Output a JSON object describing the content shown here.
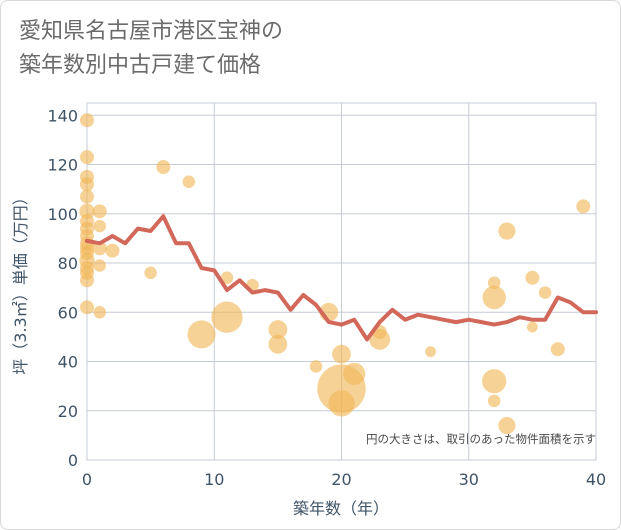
{
  "title_lines": [
    "愛知県名古屋市港区宝神の",
    "築年数別中古戸建て価格"
  ],
  "chart_data": {
    "type": "scatter",
    "title": "愛知県名古屋市港区宝神の築年数別中古戸建て価格",
    "xlabel": "築年数（年）",
    "ylabel": "坪（3.3㎡）単価（万円）",
    "xlim": [
      0,
      40
    ],
    "ylim": [
      0,
      145
    ],
    "xticks": [
      0,
      10,
      20,
      30,
      40
    ],
    "yticks": [
      0,
      20,
      40,
      60,
      80,
      100,
      120,
      140
    ],
    "grid": true,
    "annotation": "円の大きさは、取引のあった物件面積を示す",
    "colors": {
      "bubble": "#f0b657",
      "line": "#d2685a",
      "grid": "#c5ccd6",
      "axis_text": "#3f5468"
    },
    "bubbles": [
      {
        "x": 0,
        "y": 138,
        "size": 1
      },
      {
        "x": 0,
        "y": 123,
        "size": 1
      },
      {
        "x": 0,
        "y": 115,
        "size": 1
      },
      {
        "x": 0,
        "y": 112,
        "size": 1
      },
      {
        "x": 0,
        "y": 107,
        "size": 1
      },
      {
        "x": 0,
        "y": 101,
        "size": 1.2
      },
      {
        "x": 0,
        "y": 97,
        "size": 1
      },
      {
        "x": 0,
        "y": 94,
        "size": 1
      },
      {
        "x": 0,
        "y": 91,
        "size": 1
      },
      {
        "x": 0,
        "y": 88,
        "size": 1
      },
      {
        "x": 0,
        "y": 86,
        "size": 1
      },
      {
        "x": 0,
        "y": 84,
        "size": 1
      },
      {
        "x": 0,
        "y": 81,
        "size": 1.2
      },
      {
        "x": 0,
        "y": 78,
        "size": 1
      },
      {
        "x": 0,
        "y": 76,
        "size": 1
      },
      {
        "x": 0,
        "y": 73,
        "size": 1
      },
      {
        "x": 0,
        "y": 62,
        "size": 1
      },
      {
        "x": 1,
        "y": 101,
        "size": 1
      },
      {
        "x": 1,
        "y": 95,
        "size": 0.8
      },
      {
        "x": 1,
        "y": 86,
        "size": 1
      },
      {
        "x": 1,
        "y": 79,
        "size": 0.8
      },
      {
        "x": 1,
        "y": 60,
        "size": 0.8
      },
      {
        "x": 2,
        "y": 85,
        "size": 1
      },
      {
        "x": 5,
        "y": 76,
        "size": 0.8
      },
      {
        "x": 6,
        "y": 119,
        "size": 1
      },
      {
        "x": 8,
        "y": 113,
        "size": 0.8
      },
      {
        "x": 9,
        "y": 51,
        "size": 4
      },
      {
        "x": 11,
        "y": 58,
        "size": 5
      },
      {
        "x": 11,
        "y": 74,
        "size": 0.8
      },
      {
        "x": 13,
        "y": 71,
        "size": 0.8
      },
      {
        "x": 15,
        "y": 53,
        "size": 1.8
      },
      {
        "x": 15,
        "y": 47,
        "size": 1.8
      },
      {
        "x": 18,
        "y": 38,
        "size": 0.8
      },
      {
        "x": 19,
        "y": 60,
        "size": 1.8
      },
      {
        "x": 20,
        "y": 43,
        "size": 1.8
      },
      {
        "x": 20,
        "y": 29,
        "size": 12
      },
      {
        "x": 20,
        "y": 23,
        "size": 3.5
      },
      {
        "x": 21,
        "y": 35,
        "size": 2.5
      },
      {
        "x": 23,
        "y": 49,
        "size": 2.2
      },
      {
        "x": 23,
        "y": 52,
        "size": 1
      },
      {
        "x": 27,
        "y": 44,
        "size": 0.6
      },
      {
        "x": 32,
        "y": 72,
        "size": 0.8
      },
      {
        "x": 32,
        "y": 66,
        "size": 2.8
      },
      {
        "x": 32,
        "y": 32,
        "size": 3
      },
      {
        "x": 32,
        "y": 24,
        "size": 0.8
      },
      {
        "x": 33,
        "y": 93,
        "size": 1.5
      },
      {
        "x": 33,
        "y": 14,
        "size": 1.5
      },
      {
        "x": 35,
        "y": 74,
        "size": 1
      },
      {
        "x": 35,
        "y": 54,
        "size": 0.6
      },
      {
        "x": 36,
        "y": 68,
        "size": 0.8
      },
      {
        "x": 37,
        "y": 45,
        "size": 1
      },
      {
        "x": 39,
        "y": 103,
        "size": 1
      }
    ],
    "line": {
      "x": [
        0,
        1,
        2,
        3,
        4,
        5,
        6,
        7,
        8,
        9,
        10,
        11,
        12,
        13,
        14,
        15,
        16,
        17,
        18,
        19,
        20,
        21,
        22,
        23,
        24,
        25,
        26,
        27,
        28,
        29,
        30,
        31,
        32,
        33,
        34,
        35,
        36,
        37,
        38,
        39,
        40
      ],
      "y": [
        89,
        88,
        91,
        88,
        94,
        93,
        99,
        88,
        88,
        78,
        77,
        69,
        73,
        68,
        69,
        68,
        61,
        67,
        63,
        56,
        55,
        57,
        49,
        56,
        61,
        57,
        59,
        58,
        57,
        56,
        57,
        56,
        55,
        56,
        58,
        57,
        57,
        66,
        64,
        60,
        60
      ]
    }
  }
}
